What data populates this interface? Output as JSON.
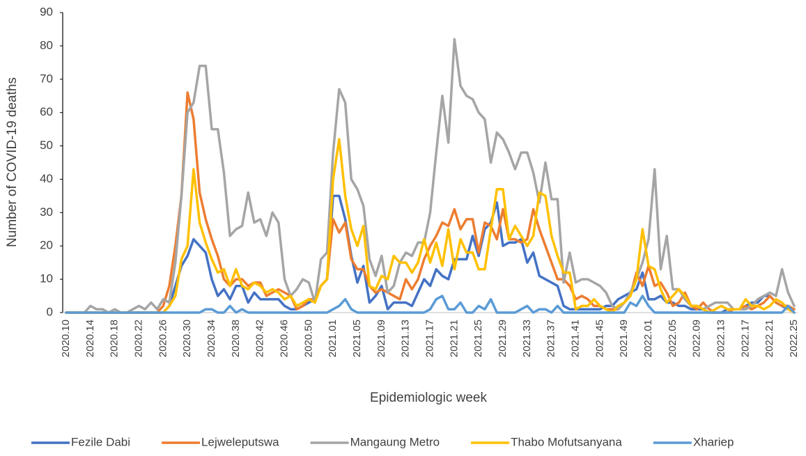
{
  "chart_data": {
    "type": "line",
    "x_label": "Epidemiologic week",
    "y_label": "Number of COVID-19 deaths",
    "categories": [
      "2020.10",
      null,
      null,
      null,
      "2020.14",
      null,
      null,
      null,
      "2020.18",
      null,
      null,
      null,
      "2020.22",
      null,
      null,
      null,
      "2020.26",
      null,
      null,
      null,
      "2020.30",
      null,
      null,
      null,
      "2020.34",
      null,
      null,
      null,
      "2020.38",
      null,
      null,
      null,
      "2020.42",
      null,
      null,
      null,
      "2020.46",
      null,
      null,
      null,
      "2020.50",
      null,
      null,
      null,
      "2021.01",
      null,
      null,
      null,
      "2021.05",
      null,
      null,
      null,
      "2021.09",
      null,
      null,
      null,
      "2021.13",
      null,
      null,
      null,
      "2021.17",
      null,
      null,
      null,
      "2021.21",
      null,
      null,
      null,
      "2021.25",
      null,
      null,
      null,
      "2021.29",
      null,
      null,
      null,
      "2021.33",
      null,
      null,
      null,
      "2021.37",
      null,
      null,
      null,
      "2021.41",
      null,
      null,
      null,
      "2021.45",
      null,
      null,
      null,
      "2021.49",
      null,
      null,
      null,
      "2022.01",
      null,
      null,
      null,
      "2022.05",
      null,
      null,
      null,
      "2022.09",
      null,
      null,
      null,
      "2022.13",
      null,
      null,
      null,
      "2022.17",
      null,
      null,
      null,
      "2022.21",
      null,
      null,
      null,
      "2022.25"
    ],
    "series": [
      {
        "name": "Fezile Dabi",
        "color": "#4472c4",
        "values": [
          0,
          0,
          0,
          0,
          0,
          0,
          0,
          0,
          0,
          0,
          0,
          0,
          0,
          0,
          0,
          0,
          0,
          2,
          8,
          14,
          17,
          22,
          20,
          18,
          10,
          5,
          7,
          4,
          8,
          8,
          3,
          6,
          4,
          4,
          4,
          4,
          2,
          1,
          1,
          2,
          3,
          4,
          8,
          10,
          35,
          35,
          28,
          17,
          9,
          14,
          3,
          5,
          8,
          1,
          3,
          3,
          3,
          2,
          6,
          10,
          8,
          13,
          11,
          10,
          16,
          16,
          16,
          23,
          17,
          25,
          27,
          33,
          20,
          21,
          21,
          22,
          15,
          18,
          11,
          10,
          9,
          8,
          2,
          1,
          1,
          1,
          1,
          1,
          1,
          2,
          2,
          4,
          5,
          6,
          7,
          12,
          4,
          4,
          5,
          3,
          3,
          2,
          2,
          1,
          1,
          1,
          0,
          0,
          0,
          1,
          1,
          1,
          2,
          3,
          3,
          5,
          5,
          3,
          2,
          1,
          1
        ]
      },
      {
        "name": "Lejweleputswa",
        "color": "#ed7d31",
        "values": [
          0,
          0,
          0,
          0,
          0,
          0,
          0,
          0,
          0,
          0,
          0,
          0,
          0,
          0,
          0,
          0,
          2,
          8,
          20,
          35,
          66,
          58,
          36,
          28,
          22,
          17,
          10,
          8,
          10,
          10,
          8,
          9,
          9,
          5,
          6,
          7,
          6,
          5,
          1,
          2,
          4,
          4,
          8,
          10,
          28,
          24,
          27,
          16,
          13,
          13,
          8,
          6,
          7,
          6,
          5,
          4,
          10,
          7,
          10,
          16,
          20,
          23,
          27,
          26,
          31,
          25,
          28,
          28,
          18,
          27,
          26,
          22,
          31,
          22,
          22,
          21,
          22,
          31,
          25,
          20,
          15,
          10,
          10,
          8,
          4,
          5,
          4,
          2,
          2,
          1,
          1,
          1,
          3,
          5,
          12,
          8,
          14,
          8,
          9,
          6,
          2,
          3,
          6,
          2,
          1,
          3,
          1,
          0,
          0,
          0,
          1,
          1,
          2,
          1,
          2,
          3,
          5,
          3,
          2,
          2,
          1
        ]
      },
      {
        "name": "Mangaung Metro",
        "color": "#a5a5a5",
        "values": [
          0,
          0,
          0,
          0,
          2,
          1,
          1,
          0,
          1,
          0,
          0,
          1,
          2,
          1,
          3,
          1,
          4,
          3,
          15,
          35,
          60,
          63,
          74,
          74,
          55,
          55,
          42,
          23,
          25,
          26,
          36,
          27,
          28,
          23,
          30,
          27,
          10,
          5,
          7,
          10,
          9,
          3,
          16,
          18,
          48,
          67,
          63,
          40,
          37,
          32,
          16,
          11,
          17,
          6,
          8,
          15,
          18,
          17,
          21,
          21,
          30,
          48,
          65,
          51,
          82,
          68,
          65,
          64,
          60,
          58,
          45,
          54,
          52,
          48,
          43,
          48,
          48,
          42,
          33,
          45,
          34,
          34,
          9,
          18,
          9,
          10,
          10,
          9,
          8,
          6,
          2,
          1,
          3,
          6,
          10,
          15,
          22,
          43,
          13,
          23,
          7,
          7,
          4,
          2,
          2,
          1,
          2,
          3,
          3,
          3,
          1,
          1,
          1,
          2,
          4,
          5,
          6,
          5,
          13,
          6,
          2
        ]
      },
      {
        "name": "Thabo Mofutsanyana",
        "color": "#ffc000",
        "values": [
          0,
          0,
          0,
          0,
          0,
          0,
          0,
          0,
          0,
          0,
          0,
          0,
          0,
          0,
          0,
          0,
          0,
          2,
          5,
          16,
          20,
          43,
          27,
          21,
          16,
          12,
          13,
          8,
          13,
          8,
          7,
          9,
          8,
          6,
          7,
          6,
          4,
          5,
          2,
          3,
          4,
          3,
          8,
          10,
          40,
          52,
          35,
          25,
          20,
          26,
          8,
          7,
          11,
          10,
          17,
          15,
          15,
          12,
          15,
          22,
          15,
          21,
          14,
          25,
          13,
          22,
          18,
          18,
          13,
          13,
          25,
          37,
          37,
          22,
          26,
          23,
          20,
          23,
          36,
          35,
          23,
          17,
          12,
          12,
          1,
          2,
          2,
          4,
          2,
          1,
          0,
          2,
          3,
          5,
          10,
          25,
          14,
          13,
          7,
          3,
          5,
          7,
          5,
          2,
          2,
          1,
          0,
          1,
          2,
          1,
          1,
          1,
          4,
          2,
          2,
          1,
          2,
          4,
          3,
          1,
          0
        ]
      },
      {
        "name": "Xhariep",
        "color": "#5b9bd5",
        "values": [
          0,
          0,
          0,
          0,
          0,
          0,
          0,
          0,
          0,
          0,
          0,
          0,
          0,
          0,
          0,
          0,
          0,
          0,
          0,
          0,
          0,
          0,
          0,
          1,
          1,
          0,
          0,
          2,
          0,
          1,
          0,
          0,
          0,
          0,
          0,
          0,
          0,
          0,
          0,
          0,
          0,
          0,
          0,
          0,
          1,
          2,
          4,
          1,
          0,
          0,
          0,
          0,
          0,
          0,
          0,
          0,
          0,
          0,
          0,
          0,
          1,
          4,
          5,
          1,
          1,
          3,
          0,
          0,
          2,
          1,
          4,
          0,
          0,
          0,
          0,
          1,
          2,
          0,
          1,
          1,
          0,
          2,
          0,
          0,
          0,
          0,
          0,
          0,
          0,
          0,
          0,
          0,
          0,
          3,
          2,
          5,
          2,
          0,
          0,
          0,
          0,
          0,
          0,
          0,
          0,
          0,
          0,
          0,
          0,
          0,
          0,
          0,
          0,
          0,
          0,
          0,
          0,
          0,
          0,
          2,
          0
        ]
      }
    ],
    "ylim": [
      0,
      90
    ],
    "yticks": [
      0,
      10,
      20,
      30,
      40,
      50,
      60,
      70,
      80,
      90
    ],
    "grid": false,
    "legend": "bottom"
  }
}
